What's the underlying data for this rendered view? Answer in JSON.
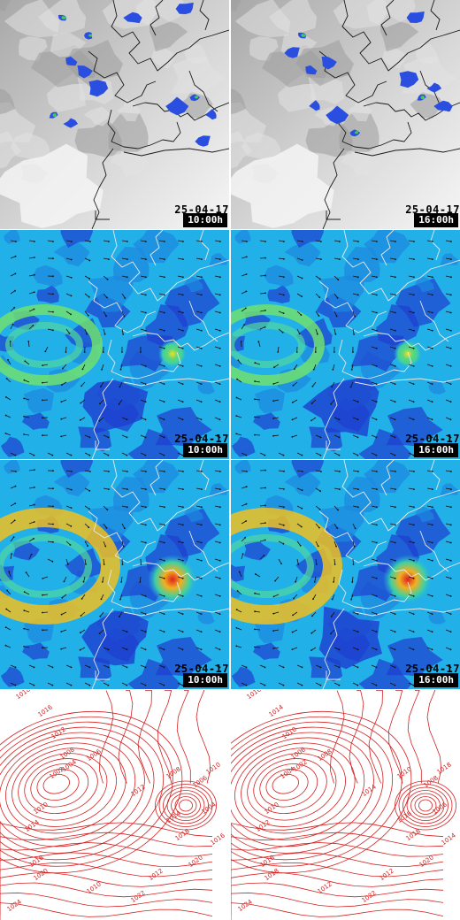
{
  "colors": {
    "coast": "#1a1a1a",
    "coast_on_color": "#e8e8e8",
    "cloud_bg": "#bdbdbd",
    "precip": "#2a4fe0",
    "isobar": "#d42020",
    "wind_low": "#1e3fd0",
    "wind_mid": "#22b0e8",
    "wind_high": "#f0e020",
    "wind_max": "#e02020"
  },
  "panels": [
    {
      "row": "satellite",
      "column": "left",
      "date": "25-04-17",
      "time": "10:00h"
    },
    {
      "row": "satellite",
      "column": "right",
      "date": "25-04-17",
      "time": "16:00h"
    },
    {
      "row": "wind-low",
      "column": "left",
      "date": "25-04-17",
      "time": "10:00h"
    },
    {
      "row": "wind-low",
      "column": "right",
      "date": "25-04-17",
      "time": "16:00h"
    },
    {
      "row": "wind-high",
      "column": "left",
      "date": "25-04-17",
      "time": "10:00h"
    },
    {
      "row": "wind-high",
      "column": "right",
      "date": "25-04-17",
      "time": "16:00h"
    },
    {
      "row": "pressure",
      "column": "left"
    },
    {
      "row": "pressure",
      "column": "right"
    }
  ],
  "isobar_labels_left": [
    "1018",
    "1016",
    "1012",
    "1008",
    "1004",
    "1002",
    "1006",
    "1010",
    "1014",
    "1018",
    "1020",
    "1010",
    "1012",
    "1014",
    "1018",
    "1020",
    "1022",
    "1024",
    "1008",
    "1006",
    "1004",
    "1016",
    "1012",
    "1010"
  ],
  "isobar_labels_right": [
    "1016",
    "1014",
    "1010",
    "1006",
    "1002",
    "1004",
    "1008",
    "1010",
    "1012",
    "1016",
    "1018",
    "1012",
    "1014",
    "1016",
    "1018",
    "1020",
    "1022",
    "1024",
    "1010",
    "1008",
    "1006",
    "1014",
    "1012",
    "1018"
  ]
}
